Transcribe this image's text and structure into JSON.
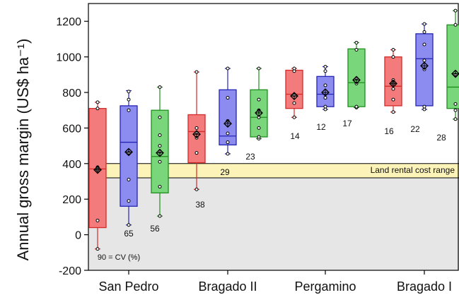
{
  "chart_data": {
    "type": "box",
    "ylabel": "Annual gross margin (US$ ha⁻¹)",
    "xlabel": "",
    "ylim": [
      -200,
      1300
    ],
    "yticks": [
      -200,
      0,
      200,
      400,
      600,
      800,
      1000,
      1200
    ],
    "categories": [
      "San Pedro",
      "Bragado II",
      "Pergamino",
      "Bragado I"
    ],
    "series": [
      {
        "color": "#f47b7b",
        "stroke": "#d42a2a"
      },
      {
        "color": "#8c8cf0",
        "stroke": "#2424b4"
      },
      {
        "color": "#7ad67a",
        "stroke": "#1e8f1e"
      }
    ],
    "boxes": [
      {
        "site": 0,
        "series": 0,
        "min": -80,
        "q1": 40,
        "median": 370,
        "q3": 710,
        "max": 745,
        "mean": 365,
        "points": [
          -80,
          80,
          365,
          380,
          710,
          745
        ],
        "cv": "90 = CV (%)"
      },
      {
        "site": 0,
        "series": 1,
        "min": 55,
        "q1": 160,
        "median": 520,
        "q3": 725,
        "max": 810,
        "mean": 465,
        "points": [
          55,
          190,
          310,
          460,
          700,
          760,
          805
        ],
        "cv": "65"
      },
      {
        "site": 0,
        "series": 2,
        "min": 105,
        "q1": 235,
        "median": 440,
        "q3": 700,
        "max": 830,
        "mean": 460,
        "points": [
          105,
          270,
          410,
          470,
          500,
          560,
          660,
          830
        ],
        "cv": "56"
      },
      {
        "site": 1,
        "series": 0,
        "min": 255,
        "q1": 405,
        "median": 580,
        "q3": 675,
        "max": 915,
        "mean": 565,
        "points": [
          255,
          460,
          545,
          575,
          600,
          915
        ],
        "cv": "38"
      },
      {
        "site": 1,
        "series": 1,
        "min": 455,
        "q1": 505,
        "median": 555,
        "q3": 815,
        "max": 935,
        "mean": 625,
        "points": [
          455,
          520,
          570,
          640,
          770,
          935
        ],
        "cv": "29"
      },
      {
        "site": 1,
        "series": 2,
        "min": 540,
        "q1": 550,
        "median": 660,
        "q3": 815,
        "max": 935,
        "mean": 685,
        "points": [
          540,
          550,
          600,
          660,
          700,
          760,
          935
        ],
        "cv": "23"
      },
      {
        "site": 2,
        "series": 0,
        "min": 660,
        "q1": 710,
        "median": 790,
        "q3": 925,
        "max": 935,
        "mean": 780,
        "points": [
          660,
          740,
          785,
          920,
          935
        ],
        "cv": "14"
      },
      {
        "site": 2,
        "series": 1,
        "min": 705,
        "q1": 720,
        "median": 790,
        "q3": 890,
        "max": 945,
        "mean": 800,
        "points": [
          705,
          720,
          770,
          840,
          920,
          945
        ],
        "cv": "12"
      },
      {
        "site": 2,
        "series": 2,
        "min": 715,
        "q1": 720,
        "median": 855,
        "q3": 1045,
        "max": 1080,
        "mean": 870,
        "points": [
          715,
          720,
          850,
          880,
          1040,
          1080
        ],
        "cv": "17"
      },
      {
        "site": 3,
        "series": 0,
        "min": 690,
        "q1": 725,
        "median": 835,
        "q3": 1000,
        "max": 1040,
        "mean": 850,
        "points": [
          690,
          760,
          820,
          850,
          870,
          1000,
          1040
        ],
        "cv": "16"
      },
      {
        "site": 3,
        "series": 1,
        "min": 705,
        "q1": 725,
        "median": 990,
        "q3": 1130,
        "max": 1185,
        "mean": 950,
        "points": [
          705,
          720,
          930,
          980,
          1070,
          1140,
          1185
        ],
        "cv": "22"
      },
      {
        "site": 3,
        "series": 2,
        "min": 650,
        "q1": 710,
        "median": 830,
        "q3": 1180,
        "max": 1260,
        "mean": 905,
        "points": [
          650,
          700,
          735,
          900,
          1180,
          1260
        ],
        "cv": "28"
      }
    ],
    "band": {
      "label": "Land rental cost range",
      "low": 320,
      "high": 400,
      "color": "#fbf3b8"
    },
    "shaded_below": {
      "value": 320,
      "color": "#e6e6e6"
    }
  }
}
